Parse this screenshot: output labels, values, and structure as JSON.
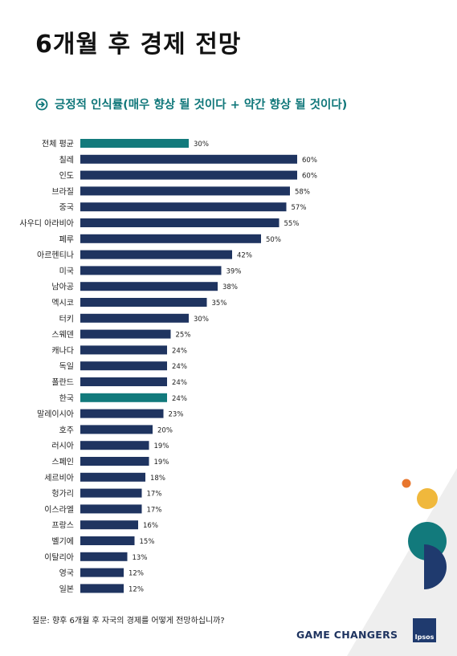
{
  "title": "6개월 후 경제 전망",
  "subtitle": "긍정적 인식률(매우 향상 될 것이다 + 약간 향상 될 것이다)",
  "footnote": "질문: 향후 6개월 후 자국의 경제를 어떻게 전망하십니까?",
  "brand": "GAME CHANGERS",
  "logo_text": "Ipsos",
  "colors": {
    "bar_default": "#1f3460",
    "bar_highlight": "#127a7c",
    "accent_teal": "#10777a",
    "deco_orange": "#e8762d",
    "deco_yellow": "#f0b83c",
    "deco_teal": "#127a7c",
    "deco_navy": "#1f3a6e"
  },
  "chart_data": {
    "type": "bar",
    "orientation": "horizontal",
    "value_suffix": "%",
    "xlim": [
      0,
      60
    ],
    "grid": false,
    "legend": "none",
    "categories": [
      "전체 평균",
      "칠레",
      "인도",
      "브라질",
      "중국",
      "사우디 아라비아",
      "페루",
      "아르헨티나",
      "미국",
      "남아공",
      "멕시코",
      "터키",
      "스웨덴",
      "캐나다",
      "독일",
      "폴란드",
      "한국",
      "말레이시아",
      "호주",
      "러시아",
      "스페인",
      "세르비아",
      "헝가리",
      "이스라엘",
      "프랑스",
      "벨기에",
      "이탈리아",
      "영국",
      "일본"
    ],
    "values": [
      30,
      60,
      60,
      58,
      57,
      55,
      50,
      42,
      39,
      38,
      35,
      30,
      25,
      24,
      24,
      24,
      24,
      23,
      20,
      19,
      19,
      18,
      17,
      17,
      16,
      15,
      13,
      12,
      12
    ],
    "highlighted": [
      "전체 평균",
      "한국"
    ]
  }
}
